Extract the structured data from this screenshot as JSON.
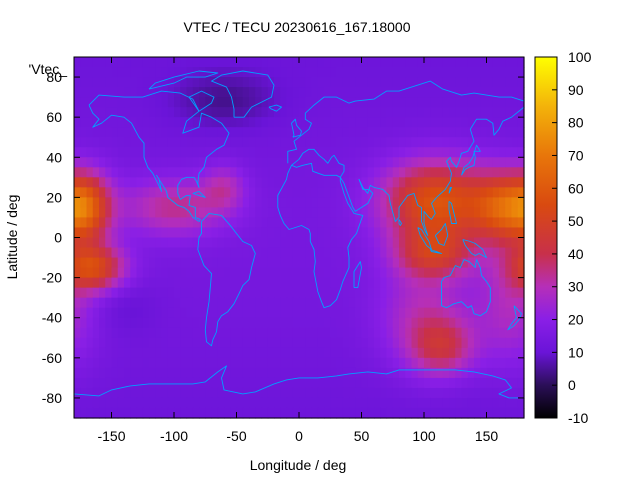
{
  "chart_data": {
    "type": "heatmap",
    "title": "VTEC / TECU 20230616_167.18000",
    "xlabel": "Longitude / deg",
    "ylabel": "Latitude / deg",
    "series_key_label": "'Vtec_",
    "xlim": [
      -180,
      180
    ],
    "ylim": [
      -90,
      90
    ],
    "x_ticks": [
      -150,
      -100,
      -50,
      0,
      50,
      100,
      150
    ],
    "y_ticks": [
      -80,
      -60,
      -40,
      -20,
      0,
      20,
      40,
      60,
      80
    ],
    "colorbar": {
      "range": [
        -10,
        100
      ],
      "ticks": [
        -10,
        0,
        10,
        20,
        30,
        40,
        50,
        60,
        70,
        80,
        90,
        100
      ],
      "palette_stops": [
        {
          "v": -10,
          "color": "#000000"
        },
        {
          "v": 0,
          "color": "#2b0f58"
        },
        {
          "v": 10,
          "color": "#6a14d8"
        },
        {
          "v": 20,
          "color": "#8a1fe6"
        },
        {
          "v": 30,
          "color": "#b62fb8"
        },
        {
          "v": 40,
          "color": "#c8304a"
        },
        {
          "v": 55,
          "color": "#d94a10"
        },
        {
          "v": 70,
          "color": "#e8760a"
        },
        {
          "v": 85,
          "color": "#f3b30a"
        },
        {
          "v": 100,
          "color": "#ffff00"
        }
      ]
    },
    "coastline_color": "#00a0ff",
    "grid": false
  }
}
